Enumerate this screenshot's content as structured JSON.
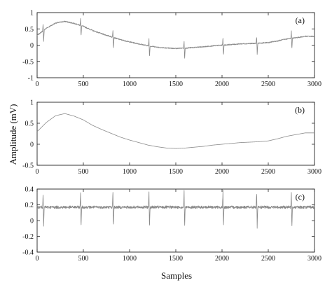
{
  "chart_data": {
    "type": "line",
    "shared_xlabel": "Samples",
    "shared_ylabel": "Amplitude (mV)",
    "panels": [
      {
        "label": "(a)",
        "xlim": [
          0,
          3000
        ],
        "ylim": [
          -1,
          1
        ],
        "xticks": [
          0,
          500,
          1000,
          1500,
          2000,
          2500,
          3000
        ],
        "yticks": [
          -1,
          -0.5,
          0,
          0.5,
          1
        ],
        "ytick_labels": [
          "-1",
          "-0.5",
          "0",
          "0.5",
          "1"
        ],
        "baseline_points": [
          [
            0,
            0.3
          ],
          [
            100,
            0.52
          ],
          [
            200,
            0.68
          ],
          [
            300,
            0.73
          ],
          [
            400,
            0.67
          ],
          [
            500,
            0.58
          ],
          [
            600,
            0.45
          ],
          [
            700,
            0.35
          ],
          [
            800,
            0.26
          ],
          [
            900,
            0.17
          ],
          [
            1000,
            0.1
          ],
          [
            1100,
            0.04
          ],
          [
            1200,
            -0.02
          ],
          [
            1300,
            -0.06
          ],
          [
            1400,
            -0.09
          ],
          [
            1500,
            -0.1
          ],
          [
            1600,
            -0.09
          ],
          [
            1700,
            -0.07
          ],
          [
            1800,
            -0.05
          ],
          [
            1900,
            -0.02
          ],
          [
            2000,
            0.0
          ],
          [
            2100,
            0.02
          ],
          [
            2200,
            0.04
          ],
          [
            2300,
            0.05
          ],
          [
            2400,
            0.06
          ],
          [
            2500,
            0.08
          ],
          [
            2600,
            0.13
          ],
          [
            2700,
            0.19
          ],
          [
            2800,
            0.23
          ],
          [
            2900,
            0.27
          ],
          [
            3000,
            0.27
          ]
        ],
        "beat_positions": [
          65,
          470,
          820,
          1210,
          1590,
          2010,
          2375,
          2750
        ],
        "spike_up": 0.22,
        "spike_down": -0.35
      },
      {
        "label": "(b)",
        "xlim": [
          0,
          3000
        ],
        "ylim": [
          -0.5,
          1
        ],
        "xticks": [
          0,
          500,
          1000,
          1500,
          2000,
          2500,
          3000
        ],
        "yticks": [
          -0.5,
          0,
          0.5,
          1
        ],
        "ytick_labels": [
          "-0.5",
          "0",
          "0.5",
          "1"
        ],
        "baseline_points": [
          [
            0,
            0.3
          ],
          [
            100,
            0.52
          ],
          [
            200,
            0.68
          ],
          [
            300,
            0.73
          ],
          [
            400,
            0.67
          ],
          [
            500,
            0.58
          ],
          [
            600,
            0.45
          ],
          [
            700,
            0.35
          ],
          [
            800,
            0.26
          ],
          [
            900,
            0.17
          ],
          [
            1000,
            0.1
          ],
          [
            1100,
            0.04
          ],
          [
            1200,
            -0.02
          ],
          [
            1300,
            -0.06
          ],
          [
            1400,
            -0.09
          ],
          [
            1500,
            -0.1
          ],
          [
            1600,
            -0.09
          ],
          [
            1700,
            -0.07
          ],
          [
            1800,
            -0.05
          ],
          [
            1900,
            -0.02
          ],
          [
            2000,
            0.0
          ],
          [
            2100,
            0.02
          ],
          [
            2200,
            0.04
          ],
          [
            2300,
            0.05
          ],
          [
            2400,
            0.06
          ],
          [
            2500,
            0.08
          ],
          [
            2600,
            0.13
          ],
          [
            2700,
            0.19
          ],
          [
            2800,
            0.23
          ],
          [
            2900,
            0.27
          ],
          [
            3000,
            0.27
          ]
        ]
      },
      {
        "label": "(c)",
        "xlim": [
          0,
          3000
        ],
        "ylim": [
          -0.4,
          0.4
        ],
        "xticks": [
          0,
          500,
          1000,
          1500,
          2000,
          2500,
          3000
        ],
        "yticks": [
          -0.4,
          -0.2,
          0,
          0.2,
          0.4
        ],
        "ytick_labels": [
          "-0.4",
          "-0.2",
          "0",
          "0.2",
          "0.4"
        ],
        "level": 0.17,
        "beat_positions": [
          65,
          470,
          820,
          1210,
          1590,
          2010,
          2375,
          2750
        ],
        "spike_up": 0.2,
        "spike_down": -0.26
      }
    ]
  }
}
